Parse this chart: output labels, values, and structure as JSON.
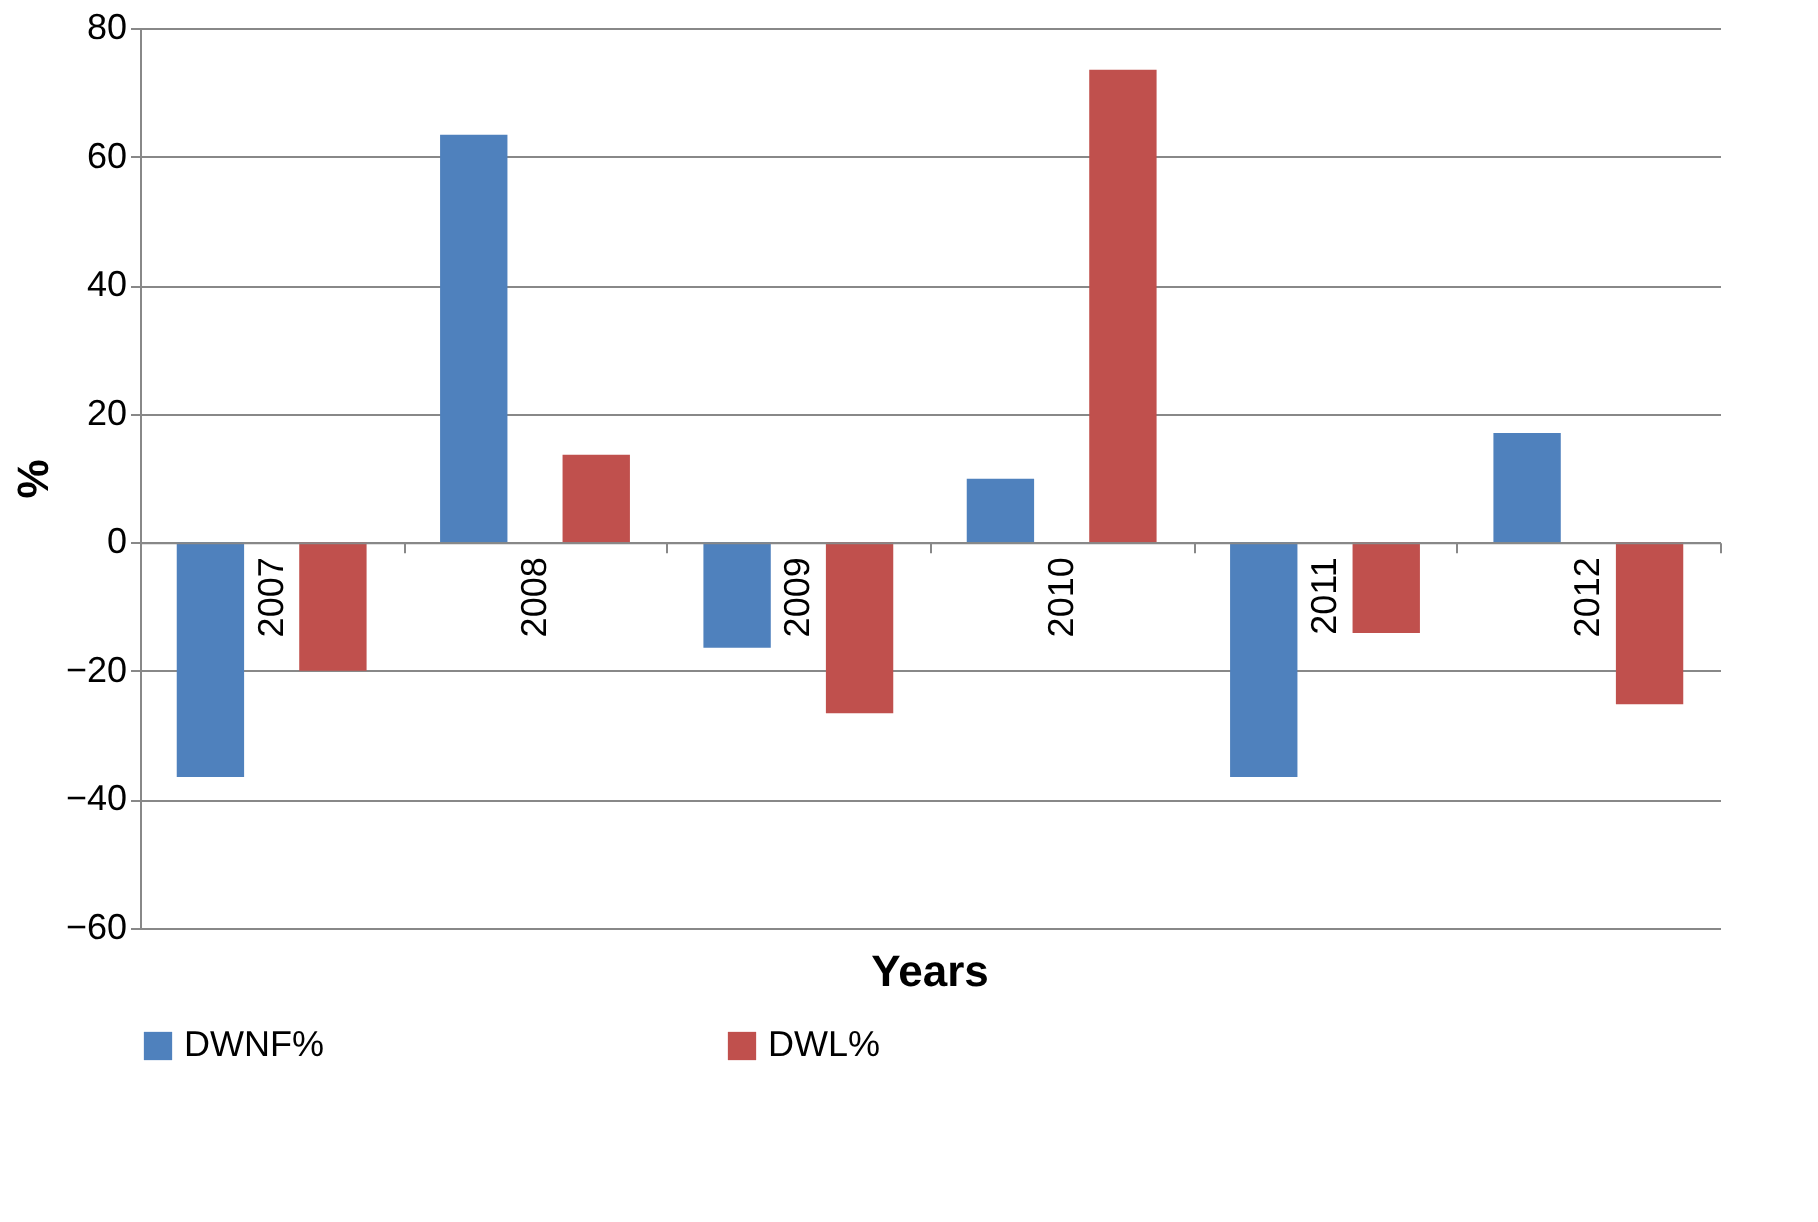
{
  "chart_data": {
    "type": "bar",
    "xlabel": "Years",
    "ylabel": "%",
    "categories": [
      "2007",
      "2008",
      "2009",
      "2010",
      "2011",
      "2012"
    ],
    "series": [
      {
        "name": "DWNF%",
        "color": "#4f81bd",
        "values": [
          -36.5,
          63.4,
          -16.4,
          9.9,
          -36.5,
          17
        ]
      },
      {
        "name": "DWL%",
        "color": "#c0504d",
        "values": [
          -20,
          13.6,
          -26.6,
          73.5,
          -14.1,
          -25.2
        ]
      }
    ],
    "ylim": [
      -60,
      80
    ],
    "yticks": [
      -60,
      -40,
      -20,
      0,
      20,
      40,
      60,
      80
    ],
    "grid": "y",
    "legend": "bottom"
  }
}
